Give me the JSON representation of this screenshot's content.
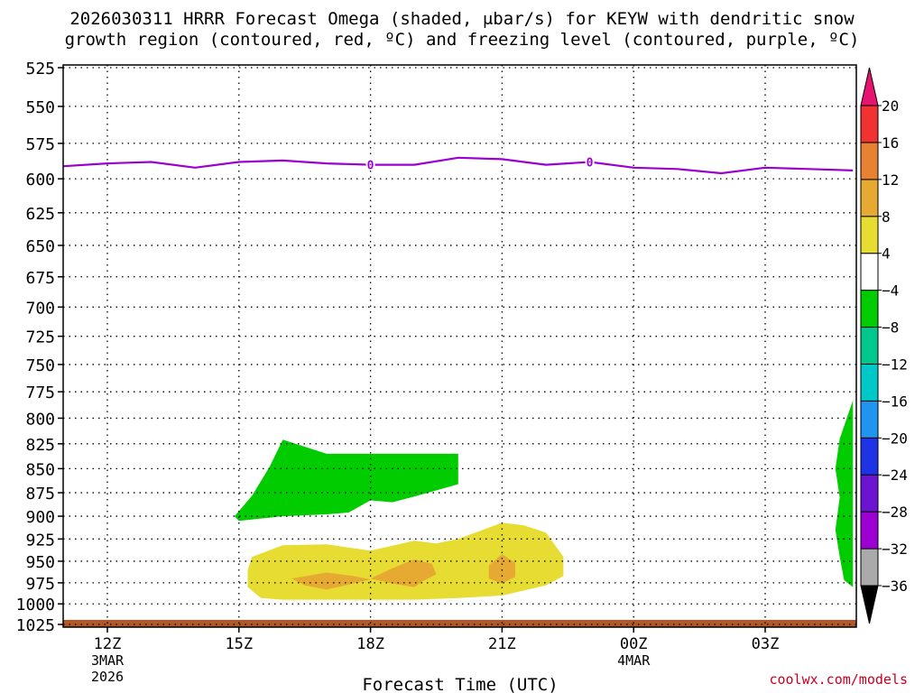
{
  "title": {
    "line1": "2026030311 HRRR Forecast Omega (shaded, μbar/s) for KEYW with dendritic snow",
    "line2": "growth region (contoured, red, ºC) and freezing level (contoured, purple, ºC)"
  },
  "watermark": "coolwx.com/models",
  "chart_data": {
    "type": "time-height cross-section",
    "xlabel": "Forecast Time (UTC)",
    "x_ticks": [
      {
        "hour": 12,
        "label": "12Z",
        "sub": [
          "3MAR",
          "2026"
        ]
      },
      {
        "hour": 15,
        "label": "15Z",
        "sub": []
      },
      {
        "hour": 18,
        "label": "18Z",
        "sub": []
      },
      {
        "hour": 21,
        "label": "21Z",
        "sub": []
      },
      {
        "hour": 24,
        "label": "00Z",
        "sub": [
          "4MAR"
        ]
      },
      {
        "hour": 27,
        "label": "03Z",
        "sub": []
      }
    ],
    "xlim": [
      11,
      29
    ],
    "y_ticks": [
      525,
      550,
      575,
      600,
      625,
      650,
      675,
      700,
      725,
      750,
      775,
      800,
      825,
      850,
      875,
      900,
      925,
      950,
      975,
      1000,
      1025
    ],
    "ylim_hpa": [
      1025,
      520
    ],
    "y_scale": "log-pressure",
    "grid": true,
    "freezing_level": {
      "label": "0",
      "color": "#9b00d0",
      "points": [
        [
          11,
          591
        ],
        [
          12,
          589
        ],
        [
          13,
          588
        ],
        [
          14,
          592
        ],
        [
          15,
          588
        ],
        [
          16,
          587
        ],
        [
          17,
          589
        ],
        [
          18,
          590
        ],
        [
          19,
          590
        ],
        [
          20,
          585
        ],
        [
          21,
          586
        ],
        [
          22,
          590
        ],
        [
          23,
          588
        ],
        [
          24,
          592
        ],
        [
          25,
          593
        ],
        [
          26,
          596
        ],
        [
          27,
          592
        ],
        [
          28,
          593
        ],
        [
          29,
          594
        ]
      ],
      "label_at_hours": [
        18,
        23
      ]
    },
    "omega_regions": [
      {
        "level": "-4 to -8",
        "color": "#00cc00",
        "polygon": [
          [
            16,
            821
          ],
          [
            17,
            835
          ],
          [
            18,
            835
          ],
          [
            19.5,
            835
          ],
          [
            20,
            835
          ],
          [
            20,
            866
          ],
          [
            19,
            879
          ],
          [
            18.5,
            885
          ],
          [
            18,
            883
          ],
          [
            17.5,
            896
          ],
          [
            17,
            898
          ],
          [
            16,
            900
          ],
          [
            15,
            905
          ],
          [
            14.9,
            900
          ],
          [
            15.3,
            878
          ],
          [
            15.7,
            848
          ]
        ]
      },
      {
        "level": "-4 to -8",
        "color": "#00cc00",
        "polygon": [
          [
            29,
            783
          ],
          [
            29,
            980
          ],
          [
            28.8,
            972
          ],
          [
            28.7,
            945
          ],
          [
            28.6,
            915
          ],
          [
            28.7,
            880
          ],
          [
            28.6,
            850
          ],
          [
            28.7,
            820
          ]
        ]
      },
      {
        "level": "4 to 8",
        "color": "#e6dc32",
        "polygon": [
          [
            15.3,
            945
          ],
          [
            16,
            932
          ],
          [
            17,
            931
          ],
          [
            18,
            938
          ],
          [
            19,
            927
          ],
          [
            19.5,
            930
          ],
          [
            20,
            925
          ],
          [
            21,
            907
          ],
          [
            21.5,
            910
          ],
          [
            22,
            918
          ],
          [
            22.4,
            945
          ],
          [
            22.4,
            967
          ],
          [
            22,
            978
          ],
          [
            21,
            990
          ],
          [
            20,
            993
          ],
          [
            19,
            995
          ],
          [
            18,
            995
          ],
          [
            17,
            995
          ],
          [
            16,
            995
          ],
          [
            15.5,
            993
          ],
          [
            15.2,
            980
          ],
          [
            15.2,
            960
          ]
        ]
      },
      {
        "level": "8 to 12",
        "color": "#e6aa32",
        "polygon": [
          [
            16.2,
            970
          ],
          [
            17,
            963
          ],
          [
            17.6,
            967
          ],
          [
            18,
            971
          ],
          [
            17.6,
            976
          ],
          [
            17,
            983
          ],
          [
            16.5,
            978
          ]
        ]
      },
      {
        "level": "8 to 12",
        "color": "#e6aa32",
        "polygon": [
          [
            18,
            970
          ],
          [
            18.5,
            958
          ],
          [
            19,
            948
          ],
          [
            19.4,
            953
          ],
          [
            19.5,
            965
          ],
          [
            19.2,
            973
          ],
          [
            19,
            980
          ],
          [
            18.5,
            976
          ]
        ]
      },
      {
        "level": "8 to 12",
        "color": "#e6aa32",
        "polygon": [
          [
            20.7,
            955
          ],
          [
            21,
            942
          ],
          [
            21.3,
            952
          ],
          [
            21.3,
            968
          ],
          [
            21,
            976
          ],
          [
            20.7,
            970
          ]
        ]
      }
    ],
    "surface_band": {
      "color": "#b0582a",
      "from_hpa": 1015,
      "to_hpa": 1025
    },
    "colorbar": [
      {
        "label": "-36",
        "color": "#000000"
      },
      {
        "label": "-32",
        "color": "#aaaaaa"
      },
      {
        "label": "-28",
        "color": "#9c00d2"
      },
      {
        "label": "-24",
        "color": "#6c14d2"
      },
      {
        "label": "-20",
        "color": "#1e32e6"
      },
      {
        "label": "-16",
        "color": "#1e96f0"
      },
      {
        "label": "-12",
        "color": "#00c8c8"
      },
      {
        "label": "-8",
        "color": "#00c88c"
      },
      {
        "label": "-4",
        "color": "#00cc00"
      },
      {
        "label": "4",
        "color": "#ffffff"
      },
      {
        "label": "8",
        "color": "#e6dc32"
      },
      {
        "label": "12",
        "color": "#e6aa32"
      },
      {
        "label": "16",
        "color": "#e68232"
      },
      {
        "label": "20",
        "color": "#f03232"
      }
    ],
    "colorbar_top_color": "#e6146e"
  }
}
